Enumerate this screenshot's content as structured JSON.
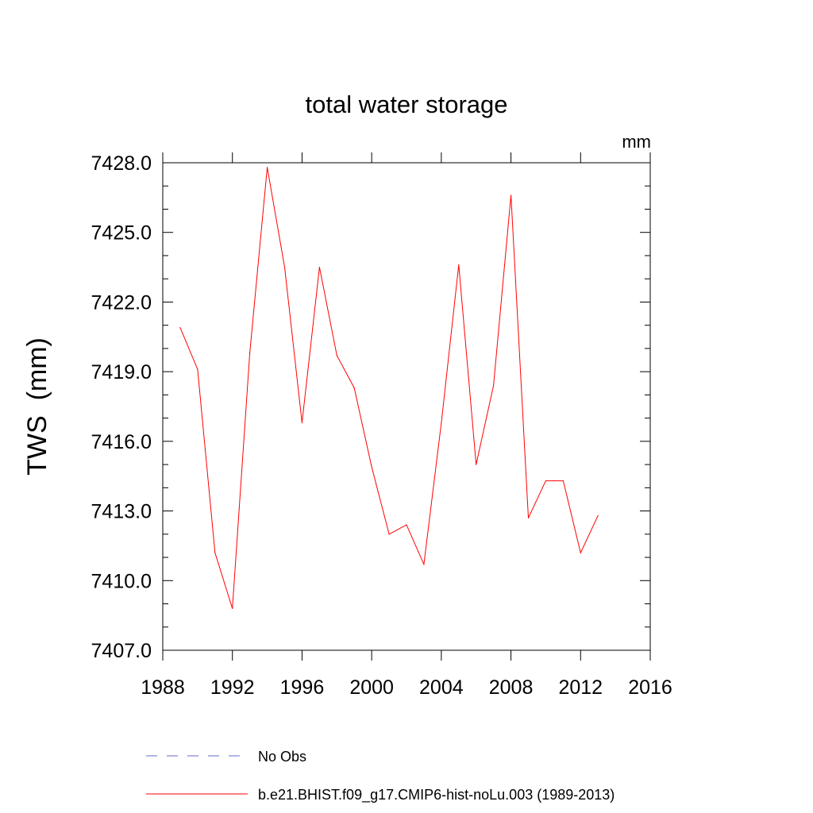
{
  "chart_data": {
    "type": "line",
    "title": "total water storage",
    "ylabel": "TWS  (mm)",
    "xlabel": "",
    "unit_label": "mm",
    "xlim": [
      1988,
      2016
    ],
    "ylim": [
      7407.0,
      7428.0
    ],
    "x_ticks": [
      1988,
      1992,
      1996,
      2000,
      2004,
      2008,
      2012,
      2016
    ],
    "x_tick_labels": [
      "1988",
      "1992",
      "1996",
      "2000",
      "2004",
      "2008",
      "2012",
      "2016"
    ],
    "y_ticks": [
      7407.0,
      7410.0,
      7413.0,
      7416.0,
      7419.0,
      7422.0,
      7425.0,
      7428.0
    ],
    "y_tick_labels": [
      "7407.0",
      "7410.0",
      "7413.0",
      "7416.0",
      "7419.0",
      "7422.0",
      "7425.0",
      "7428.0"
    ],
    "grid": false,
    "legend_position": "bottom",
    "series": [
      {
        "name": "No Obs",
        "color": "#6666cc",
        "dash": "dashed",
        "x": [],
        "values": []
      },
      {
        "name": "b.e21.BHIST.f09_g17.CMIP6-hist-noLu.003 (1989-2013)",
        "color": "#ff0000",
        "dash": "solid",
        "x": [
          1989,
          1990,
          1991,
          1992,
          1993,
          1994,
          1995,
          1996,
          1997,
          1998,
          1999,
          2000,
          2001,
          2002,
          2003,
          2004,
          2005,
          2006,
          2007,
          2008,
          2009,
          2010,
          2011,
          2012,
          2013
        ],
        "values": [
          7420.9,
          7419.1,
          7411.2,
          7408.8,
          7419.8,
          7427.8,
          7423.5,
          7416.8,
          7423.5,
          7419.7,
          7418.3,
          7414.9,
          7412.0,
          7412.4,
          7410.7,
          7416.8,
          7423.6,
          7415.0,
          7418.4,
          7426.6,
          7412.7,
          7414.3,
          7414.3,
          7411.2,
          7412.8
        ]
      }
    ]
  }
}
